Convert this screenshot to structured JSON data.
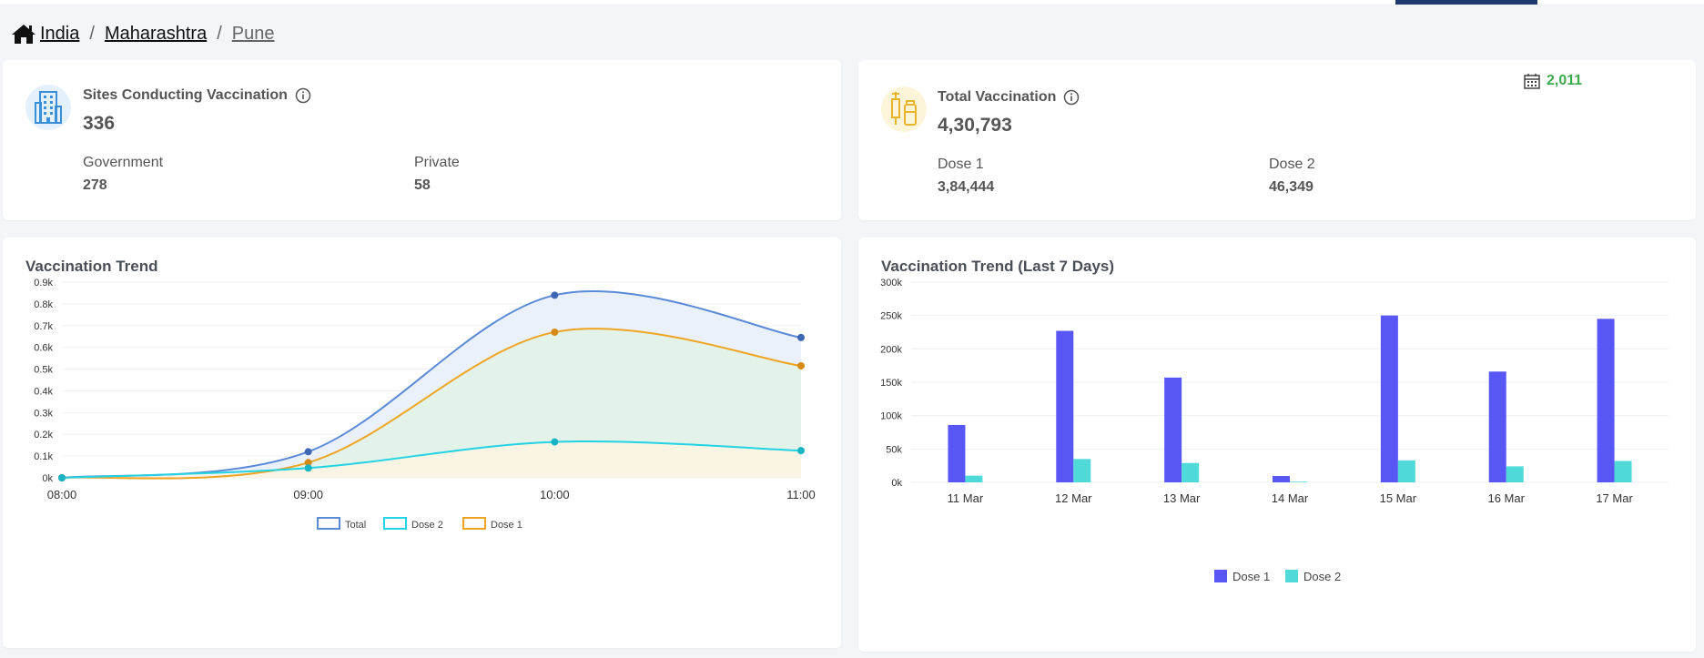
{
  "breadcrumb": {
    "country": "India",
    "state": "Maharashtra",
    "district": "Pune"
  },
  "sites_card": {
    "title": "Sites Conducting Vaccination",
    "value": "336",
    "government_label": "Government",
    "government_value": "278",
    "private_label": "Private",
    "private_value": "58",
    "icon": "building-icon"
  },
  "vaccination_card": {
    "title": "Total Vaccination",
    "value": "4,30,793",
    "dose1_label": "Dose 1",
    "dose1_value": "3,84,444",
    "dose2_label": "Dose 2",
    "dose2_value": "46,349",
    "today_count": "2,011",
    "icon": "vaccine-icon"
  },
  "colors": {
    "total": "#5b8ad6",
    "dose1": "#f0a424",
    "dose2": "#22d3e4",
    "bar_dose1": "#5856f5",
    "bar_dose2": "#4fd9d9",
    "today_count": "#3ca94a"
  },
  "chart_data": [
    {
      "type": "area",
      "title": "Vaccination Trend",
      "x": [
        "08:00",
        "09:00",
        "10:00",
        "11:00"
      ],
      "yticks": [
        "0k",
        "0.1k",
        "0.2k",
        "0.3k",
        "0.4k",
        "0.5k",
        "0.6k",
        "0.7k",
        "0.8k",
        "0.9k"
      ],
      "ylim": [
        0,
        900
      ],
      "series": [
        {
          "name": "Total",
          "values": [
            0,
            120,
            840,
            645
          ]
        },
        {
          "name": "Dose 2",
          "values": [
            0,
            45,
            165,
            125
          ]
        },
        {
          "name": "Dose 1",
          "values": [
            0,
            70,
            670,
            515
          ]
        }
      ],
      "legend": "bottom",
      "grid": true
    },
    {
      "type": "bar",
      "title": "Vaccination Trend (Last 7 Days)",
      "categories": [
        "11 Mar",
        "12 Mar",
        "13 Mar",
        "14 Mar",
        "15 Mar",
        "16 Mar",
        "17 Mar"
      ],
      "yticks": [
        "0k",
        "50k",
        "100k",
        "150k",
        "200k",
        "250k",
        "300k"
      ],
      "ylim": [
        0,
        300000
      ],
      "series": [
        {
          "name": "Dose 1",
          "values": [
            86000,
            227000,
            157000,
            9500,
            250000,
            166000,
            245000
          ]
        },
        {
          "name": "Dose 2",
          "values": [
            10000,
            35000,
            29000,
            1000,
            33000,
            24000,
            32000
          ]
        }
      ],
      "legend": "bottom",
      "grid": true
    }
  ]
}
